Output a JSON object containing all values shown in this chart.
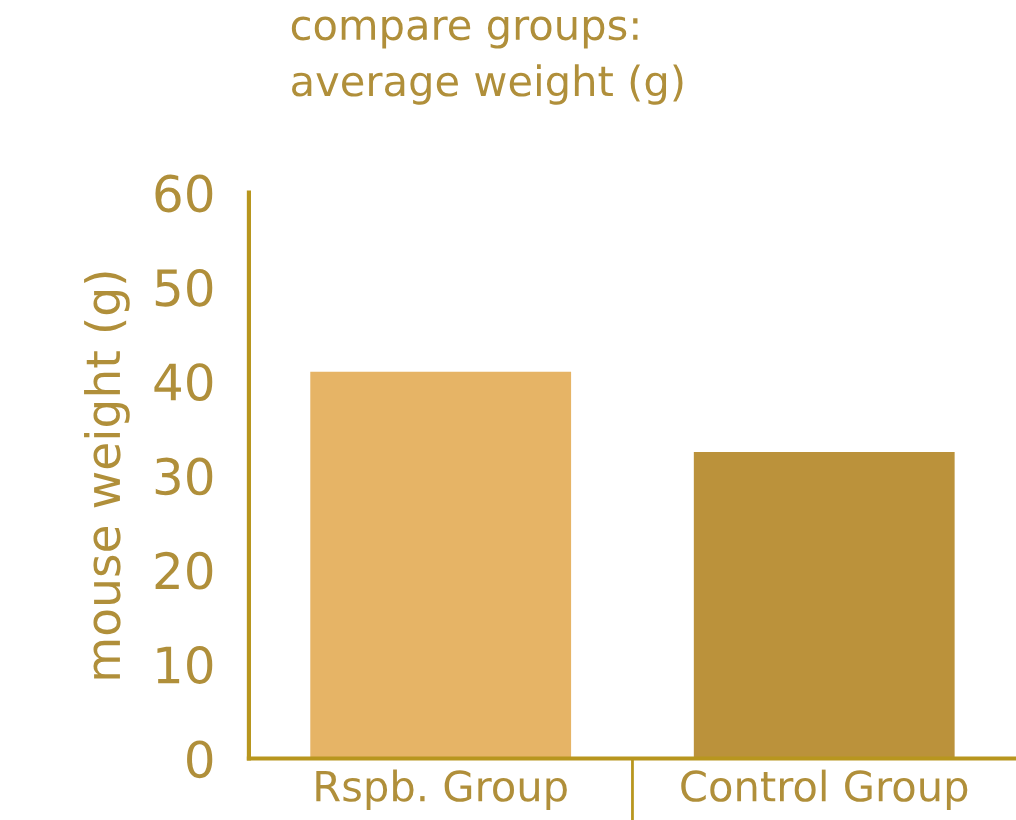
{
  "chart_data": {
    "type": "bar",
    "title": "compare groups:\naverage weight (g)",
    "ylabel": "mouse weight (g)",
    "categories": [
      "Rspb. Group",
      "Control Group"
    ],
    "values": [
      41,
      32.5
    ],
    "colors": [
      "#e6b466",
      "#bb923b"
    ],
    "ylim": [
      0,
      60
    ],
    "yticks": [
      0,
      10,
      20,
      30,
      40,
      50,
      60
    ],
    "grid": false
  }
}
